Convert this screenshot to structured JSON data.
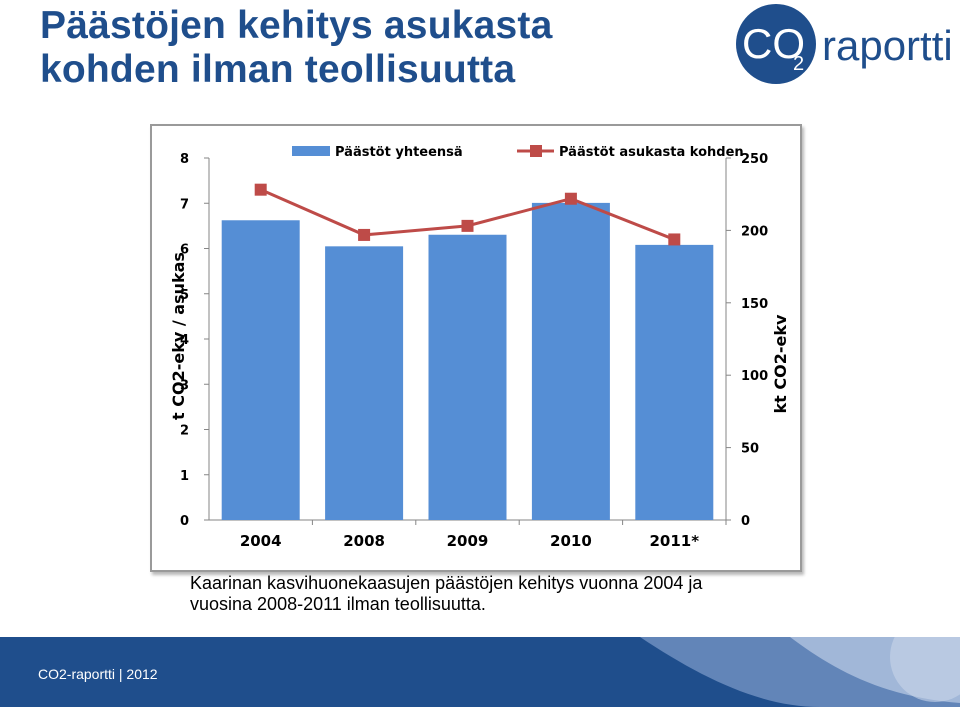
{
  "header": {
    "title_line1": "Päästöjen kehitys asukasta",
    "title_line2": "kohden ilman teollisuutta"
  },
  "logo": {
    "co": "CO",
    "sub": "2",
    "word": "raportti",
    "circle_color": "#1f4e8c"
  },
  "chart_data": {
    "type": "bar",
    "categories": [
      "2004",
      "2008",
      "2009",
      "2010",
      "2011*"
    ],
    "series": [
      {
        "name": "Päästöt yhteensä",
        "type": "bar",
        "axis": "right",
        "color": "#558ed5",
        "values": [
          207,
          189,
          197,
          219,
          190
        ]
      },
      {
        "name": "Päästöt asukasta kohden",
        "type": "line",
        "axis": "left",
        "color": "#be4b48",
        "values": [
          7.3,
          6.3,
          6.5,
          7.1,
          6.2
        ]
      }
    ],
    "y_left": {
      "label": "t CO2-ekv / asukas",
      "ylim": [
        0,
        8
      ],
      "ticks": [
        "0",
        "1",
        "2",
        "3",
        "4",
        "5",
        "6",
        "7",
        "8"
      ]
    },
    "y_right": {
      "label": "kt CO2-ekv",
      "ylim": [
        0,
        250
      ],
      "ticks": [
        "0",
        "50",
        "100",
        "150",
        "200",
        "250"
      ]
    },
    "legend_position": "top",
    "grid": false
  },
  "caption": {
    "line1": "Kaarinan kasvihuonekaasujen päästöjen kehitys  vuonna 2004 ja",
    "line2": "vuosina 2008-2011 ilman teollisuutta."
  },
  "footer": {
    "text": "CO2-raportti  |  2012",
    "color": "#1f4e8c"
  }
}
